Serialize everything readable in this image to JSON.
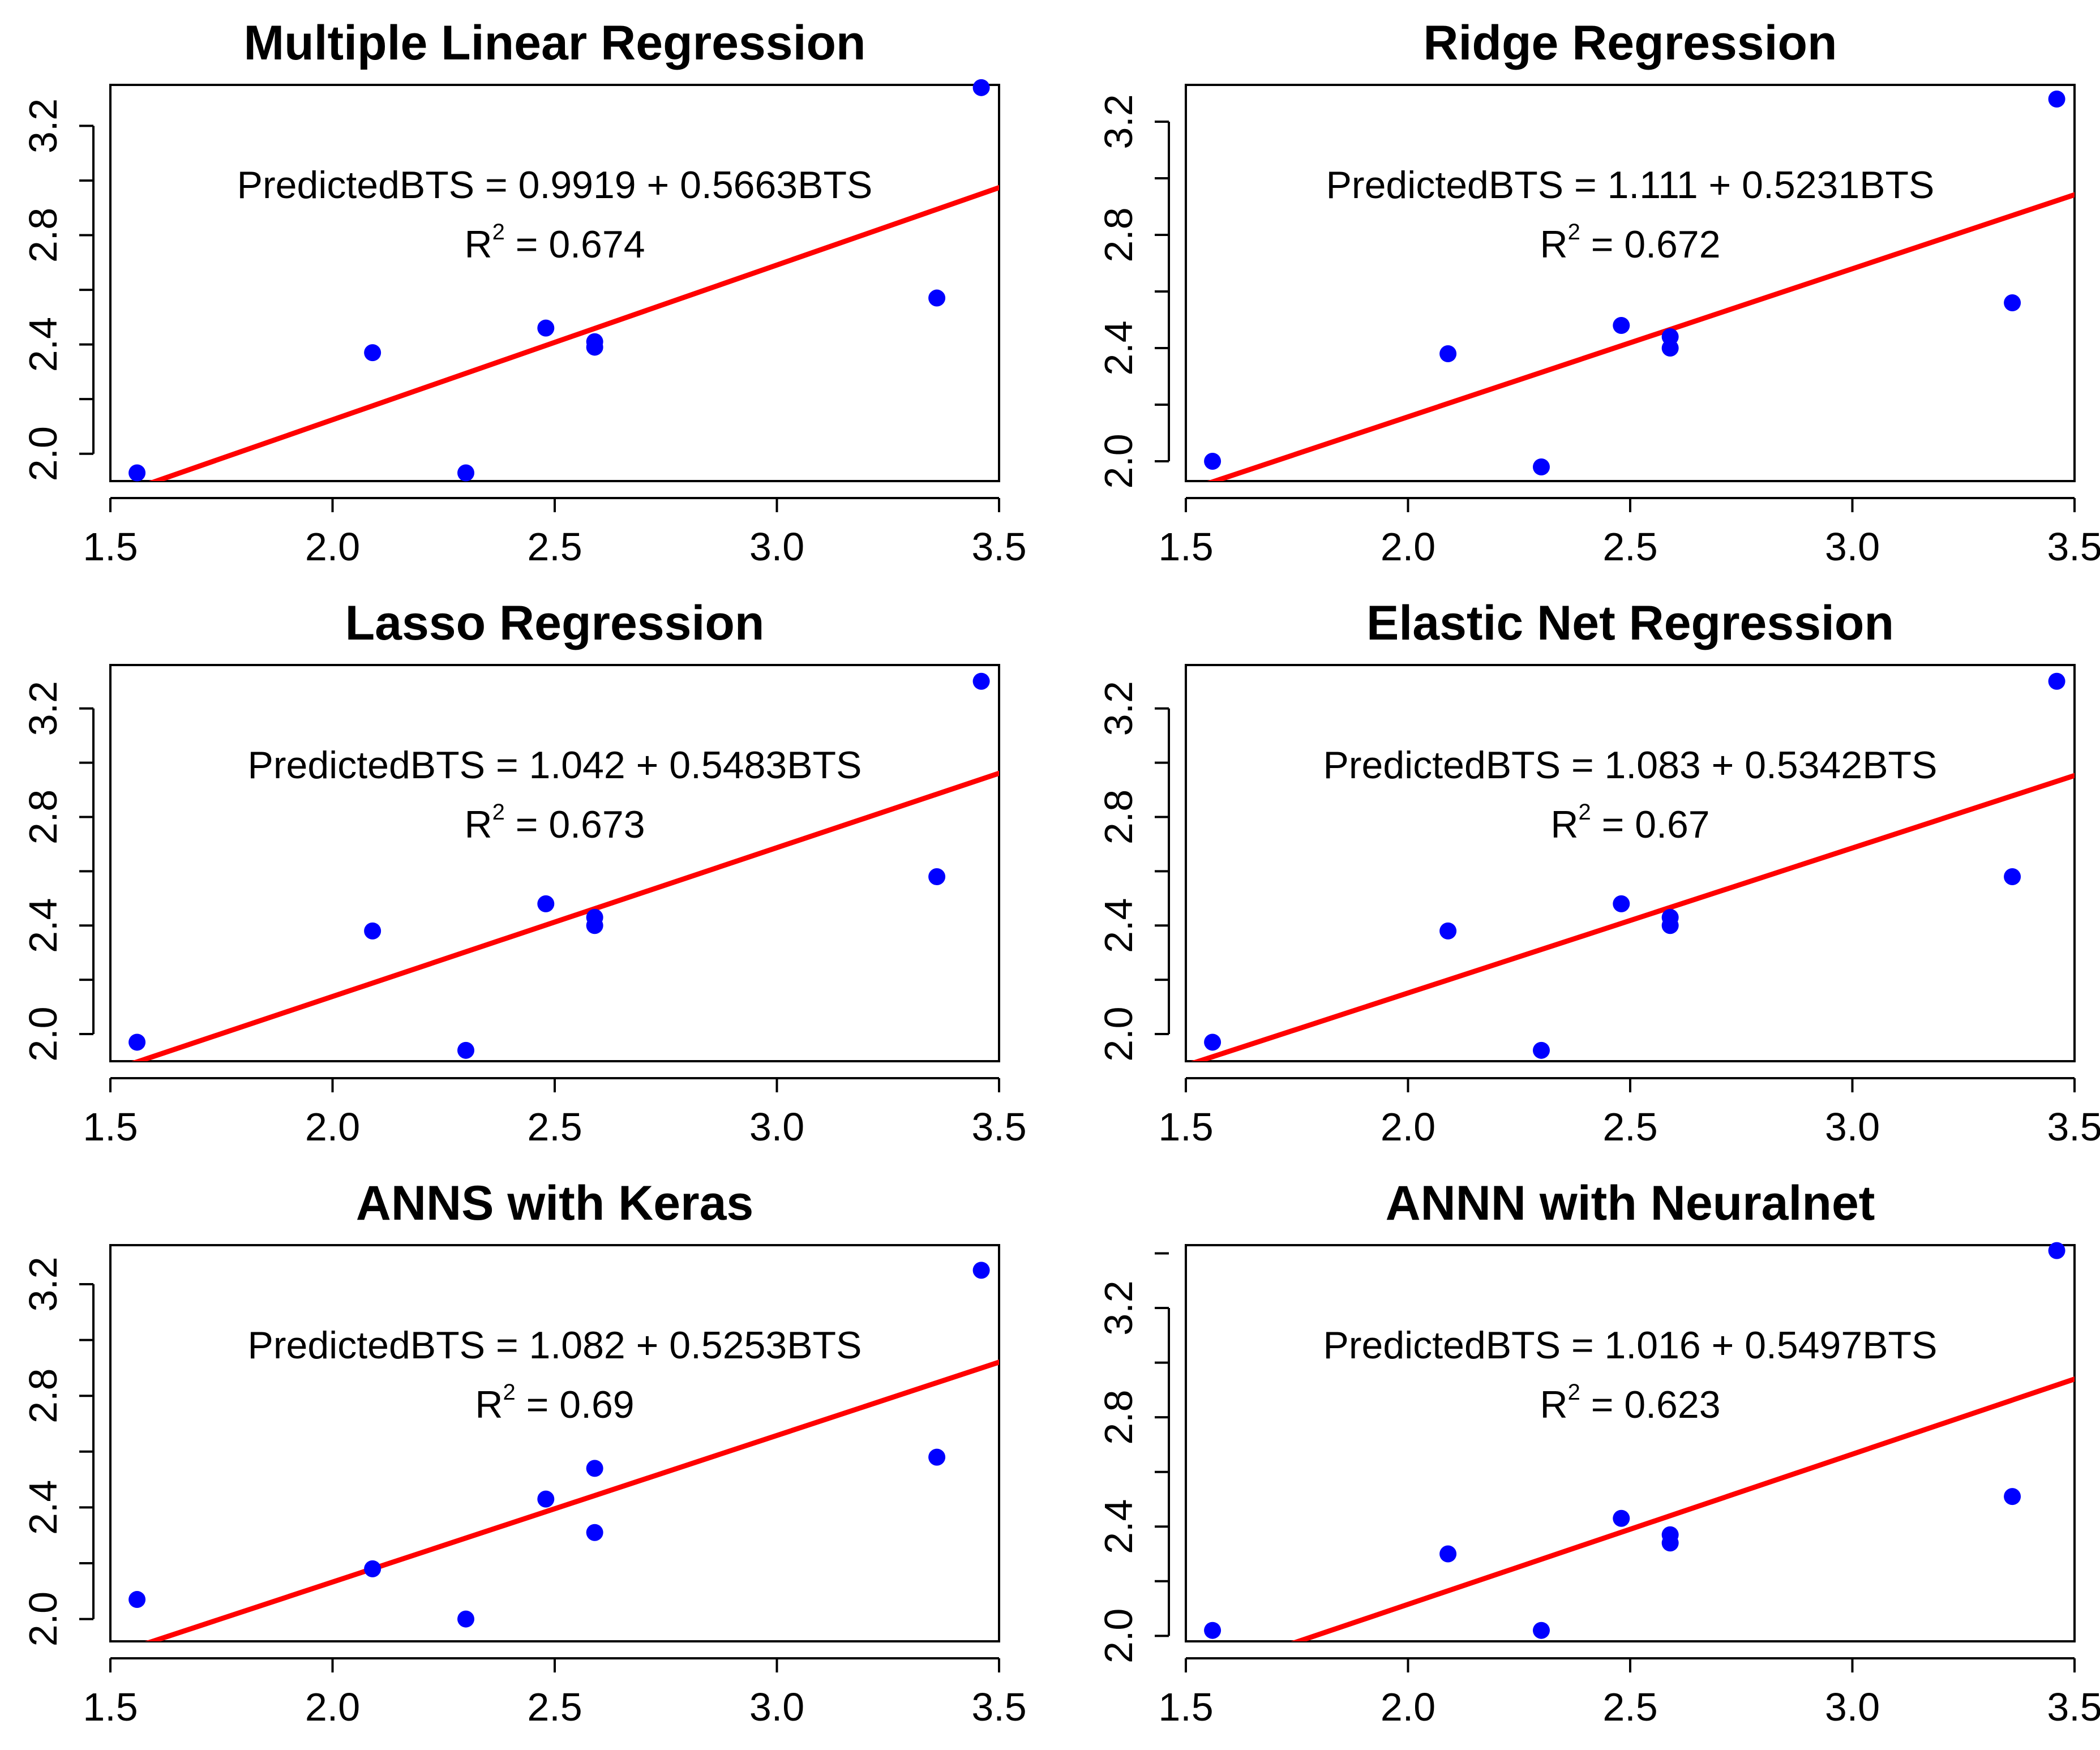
{
  "chart_data": [
    {
      "type": "scatter",
      "title": "Multiple Linear Regression",
      "xlim": [
        1.5,
        3.5
      ],
      "ylim": [
        1.9,
        3.35
      ],
      "xticks": [
        "1.5",
        "2.0",
        "2.5",
        "3.0",
        "3.5"
      ],
      "yticks": [
        "2.0",
        "2.4",
        "2.8",
        "3.2"
      ],
      "points": [
        [
          1.56,
          1.93
        ],
        [
          2.09,
          2.37
        ],
        [
          2.3,
          1.93
        ],
        [
          2.48,
          2.46
        ],
        [
          2.59,
          2.41
        ],
        [
          2.59,
          2.39
        ],
        [
          3.36,
          2.57
        ],
        [
          3.46,
          3.34
        ]
      ],
      "fit_line": {
        "intercept": 0.9919,
        "slope": 0.5663
      },
      "equation": "PredictedBTS = 0.9919 + 0.5663BTS",
      "r2_label": "R",
      "r2_sup": "2",
      "r2_value": " = 0.674"
    },
    {
      "type": "scatter",
      "title": "Ridge Regression",
      "xlim": [
        1.5,
        3.5
      ],
      "ylim": [
        1.93,
        3.33
      ],
      "xticks": [
        "1.5",
        "2.0",
        "2.5",
        "3.0",
        "3.5"
      ],
      "yticks": [
        "2.0",
        "2.4",
        "2.8",
        "3.2"
      ],
      "points": [
        [
          1.56,
          2.0
        ],
        [
          2.09,
          2.38
        ],
        [
          2.3,
          1.98
        ],
        [
          2.48,
          2.48
        ],
        [
          2.59,
          2.44
        ],
        [
          2.59,
          2.4
        ],
        [
          3.36,
          2.56
        ],
        [
          3.46,
          3.28
        ]
      ],
      "fit_line": {
        "intercept": 1.111,
        "slope": 0.5231
      },
      "equation": "PredictedBTS = 1.111 + 0.5231BTS",
      "r2_label": "R",
      "r2_sup": "2",
      "r2_value": " = 0.672"
    },
    {
      "type": "scatter",
      "title": "Lasso Regression",
      "xlim": [
        1.5,
        3.5
      ],
      "ylim": [
        1.9,
        3.36
      ],
      "xticks": [
        "1.5",
        "2.0",
        "2.5",
        "3.0",
        "3.5"
      ],
      "yticks": [
        "2.0",
        "2.4",
        "2.8",
        "3.2"
      ],
      "points": [
        [
          1.56,
          1.97
        ],
        [
          2.09,
          2.38
        ],
        [
          2.3,
          1.94
        ],
        [
          2.48,
          2.48
        ],
        [
          2.59,
          2.43
        ],
        [
          2.59,
          2.4
        ],
        [
          3.36,
          2.58
        ],
        [
          3.46,
          3.3
        ]
      ],
      "fit_line": {
        "intercept": 1.042,
        "slope": 0.5483
      },
      "equation": "PredictedBTS = 1.042 + 0.5483BTS",
      "r2_label": "R",
      "r2_sup": "2",
      "r2_value": " = 0.673"
    },
    {
      "type": "scatter",
      "title": "Elastic Net Regression",
      "xlim": [
        1.5,
        3.5
      ],
      "ylim": [
        1.9,
        3.36
      ],
      "xticks": [
        "1.5",
        "2.0",
        "2.5",
        "3.0",
        "3.5"
      ],
      "yticks": [
        "2.0",
        "2.4",
        "2.8",
        "3.2"
      ],
      "points": [
        [
          1.56,
          1.97
        ],
        [
          2.09,
          2.38
        ],
        [
          2.3,
          1.94
        ],
        [
          2.48,
          2.48
        ],
        [
          2.59,
          2.43
        ],
        [
          2.59,
          2.4
        ],
        [
          3.36,
          2.58
        ],
        [
          3.46,
          3.3
        ]
      ],
      "fit_line": {
        "intercept": 1.083,
        "slope": 0.5342
      },
      "equation": "PredictedBTS = 1.083 + 0.5342BTS",
      "r2_label": "R",
      "r2_sup": "2",
      "r2_value": " = 0.67"
    },
    {
      "type": "scatter",
      "title": "ANNS with Keras",
      "xlim": [
        1.5,
        3.5
      ],
      "ylim": [
        1.92,
        3.34
      ],
      "xticks": [
        "1.5",
        "2.0",
        "2.5",
        "3.0",
        "3.5"
      ],
      "yticks": [
        "2.0",
        "2.4",
        "2.8",
        "3.2"
      ],
      "points": [
        [
          1.56,
          2.07
        ],
        [
          2.09,
          2.18
        ],
        [
          2.3,
          2.0
        ],
        [
          2.48,
          2.43
        ],
        [
          2.59,
          2.54
        ],
        [
          2.59,
          2.31
        ],
        [
          3.36,
          2.58
        ],
        [
          3.46,
          3.25
        ]
      ],
      "fit_line": {
        "intercept": 1.082,
        "slope": 0.5253
      },
      "equation": "PredictedBTS = 1.082 + 0.5253BTS",
      "r2_label": "R",
      "r2_sup": "2",
      "r2_value": " = 0.69"
    },
    {
      "type": "scatter",
      "title": "ANNN with Neuralnet",
      "xlim": [
        1.5,
        3.5
      ],
      "ylim": [
        1.98,
        3.43
      ],
      "xticks": [
        "1.5",
        "2.0",
        "2.5",
        "3.0",
        "3.5"
      ],
      "yticks": [
        "2.0",
        "2.4",
        "2.8",
        "3.2"
      ],
      "points": [
        [
          1.56,
          2.02
        ],
        [
          2.09,
          2.3
        ],
        [
          2.3,
          2.02
        ],
        [
          2.48,
          2.43
        ],
        [
          2.59,
          2.37
        ],
        [
          2.59,
          2.34
        ],
        [
          3.36,
          2.51
        ],
        [
          3.46,
          3.41
        ]
      ],
      "fit_line": {
        "intercept": 1.016,
        "slope": 0.5497
      },
      "equation": "PredictedBTS = 1.016 + 0.5497BTS",
      "r2_label": "R",
      "r2_sup": "2",
      "r2_value": " = 0.623"
    }
  ],
  "colors": {
    "points": "#0000ff",
    "fit_line": "#ff0000",
    "axes": "#000000",
    "background": "#ffffff"
  }
}
